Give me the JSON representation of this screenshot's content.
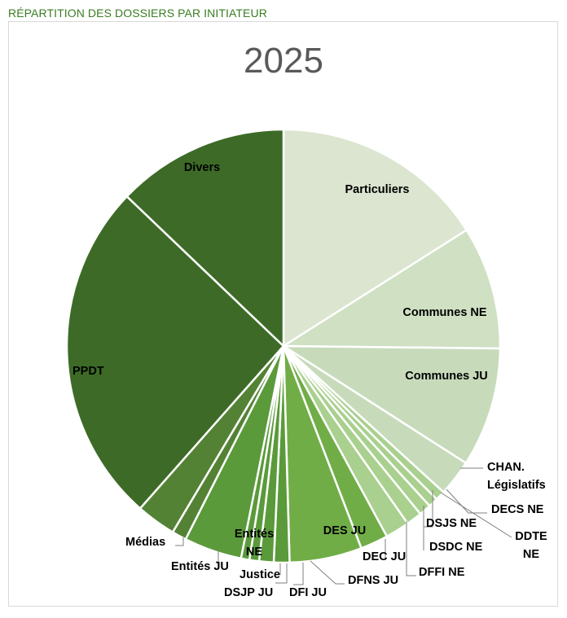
{
  "header": {
    "title": "RÉPARTITION DES DOSSIERS PAR INITIATEUR"
  },
  "colors": {
    "light": "#dbe5cf",
    "light2": "#cfe0c3",
    "light3": "#c7dbbb",
    "mid_light": "#a9d08e",
    "mid": "#70ad47",
    "mid_dark": "#5a9a3a",
    "dark": "#548235",
    "darker": "#3d6b27",
    "header": "#3a7d22",
    "title": "#595959"
  },
  "chart_data": {
    "type": "pie",
    "title": "2025",
    "slices": [
      {
        "label": "Particuliers",
        "value": 17.8
      },
      {
        "label": "Communes NE",
        "value": 10.2
      },
      {
        "label": "Communes JU",
        "value": 9.9
      },
      {
        "label": "CHAN. Législatifs",
        "value": 3.0
      },
      {
        "label": "DECS NE",
        "value": 0.8
      },
      {
        "label": "DDTE NE",
        "value": 0.8
      },
      {
        "label": "DSJS NE",
        "value": 1.0
      },
      {
        "label": "DSDC NE",
        "value": 1.3
      },
      {
        "label": "DFFI NE",
        "value": 2.0
      },
      {
        "label": "DEC JU",
        "value": 2.3
      },
      {
        "label": "DES JU",
        "value": 6.0
      },
      {
        "label": "DFNS JU",
        "value": 1.3
      },
      {
        "label": "DFI JU",
        "value": 1.2
      },
      {
        "label": "DSJP JU",
        "value": 0.8
      },
      {
        "label": "Justice",
        "value": 0.7
      },
      {
        "label": "Entités NE",
        "value": 4.8
      },
      {
        "label": "Entités JU",
        "value": 1.2
      },
      {
        "label": "Médias",
        "value": 3.3
      },
      {
        "label": "PPDT",
        "value": 28.5
      },
      {
        "label": "Divers",
        "value": 14.3
      }
    ]
  }
}
